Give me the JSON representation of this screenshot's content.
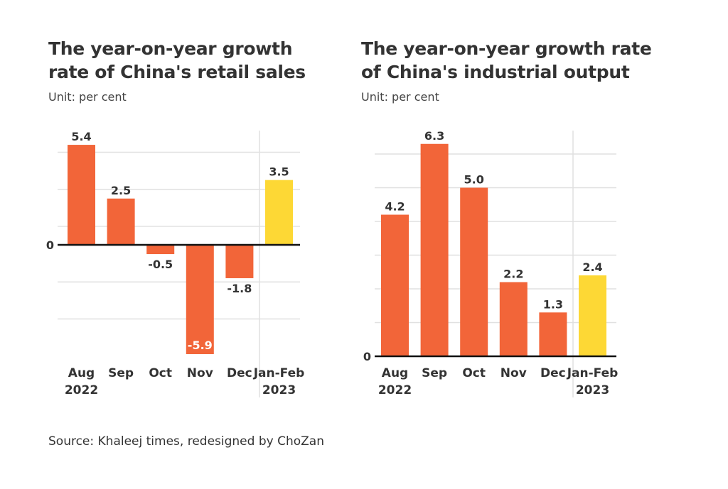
{
  "chart_data": [
    {
      "type": "bar",
      "title": "The year-on-year growth rate of China's retail sales",
      "subtitle": "Unit: per cent",
      "categories": [
        [
          "Aug",
          "2022"
        ],
        [
          "Sep",
          ""
        ],
        [
          "Oct",
          ""
        ],
        [
          "Nov",
          ""
        ],
        [
          "Dec",
          ""
        ],
        [
          "Jan-Feb",
          "2023"
        ]
      ],
      "values": [
        5.4,
        2.5,
        -0.5,
        -5.9,
        -1.8,
        3.5
      ],
      "value_labels": [
        "5.4",
        "2.5",
        "-0.5",
        "-5.9",
        "-1.8",
        "3.5"
      ],
      "ylim": [
        -5.9,
        5.4
      ],
      "gridlines": [
        5,
        3,
        1,
        -2,
        -4
      ],
      "y_tick_labels": [
        "0"
      ],
      "grid": true,
      "bar_colors": [
        "#f26539",
        "#f26539",
        "#f26539",
        "#f26539",
        "#f26539",
        "#fdd835"
      ]
    },
    {
      "type": "bar",
      "title": "The year-on-year growth rate of China's industrial output",
      "subtitle": "Unit: per cent",
      "categories": [
        [
          "Aug",
          "2022"
        ],
        [
          "Sep",
          ""
        ],
        [
          "Oct",
          ""
        ],
        [
          "Nov",
          ""
        ],
        [
          "Dec",
          ""
        ],
        [
          "Jan-Feb",
          "2023"
        ]
      ],
      "values": [
        4.2,
        6.3,
        5.0,
        2.2,
        1.3,
        2.4
      ],
      "value_labels": [
        "4.2",
        "6.3",
        "5.0",
        "2.2",
        "1.3",
        "2.4"
      ],
      "ylim": [
        0,
        6.3
      ],
      "gridlines": [
        1,
        2,
        3,
        4,
        5,
        6
      ],
      "y_tick_labels": [
        "0"
      ],
      "grid": true,
      "bar_colors": [
        "#f26539",
        "#f26539",
        "#f26539",
        "#f26539",
        "#f26539",
        "#fdd835"
      ]
    }
  ],
  "titles": {
    "left": [
      "The year-on-year growth",
      "rate of China's retail sales"
    ],
    "right": [
      "The year-on-year growth rate",
      "of China's industrial output"
    ]
  },
  "source": "Source: Khaleej times, redesigned by ChoZan",
  "watermark": "ChoZan",
  "colors": {
    "bar": "#f26539",
    "highlight": "#fdd835",
    "text": "#333333",
    "grid": "#e0e0e0"
  }
}
